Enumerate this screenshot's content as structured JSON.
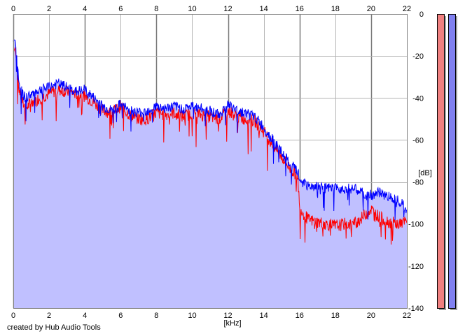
{
  "credit": "created by Hub Audio Tools",
  "chart_data": {
    "type": "line",
    "xlabel": "[kHz]",
    "ylabel": "[dB]",
    "xlim": [
      0,
      22
    ],
    "ylim": [
      -140,
      0
    ],
    "x_ticks": [
      0,
      2,
      4,
      6,
      8,
      10,
      12,
      14,
      16,
      18,
      20,
      22
    ],
    "y_ticks": [
      0,
      -20,
      -40,
      -60,
      -80,
      -100,
      -120,
      -140
    ],
    "grid": true,
    "fill_color": "#c0c0ff",
    "series": [
      {
        "color": "#ff0000",
        "x": [
          0,
          0.1,
          0.2,
          0.3,
          0.5,
          0.7,
          1.0,
          1.5,
          2.0,
          2.5,
          3.0,
          3.5,
          4.0,
          4.5,
          5.0,
          5.5,
          6.0,
          6.5,
          7.0,
          7.5,
          8.0,
          8.5,
          9.0,
          9.5,
          10.0,
          10.5,
          11.0,
          11.5,
          12.0,
          12.5,
          13.0,
          13.5,
          14.0,
          14.5,
          15.0,
          15.5,
          15.9,
          16.0,
          16.3,
          16.5,
          17.0,
          17.5,
          18.0,
          18.5,
          19.0,
          19.5,
          19.7,
          20.0,
          20.5,
          21.0,
          21.5,
          22.0
        ],
        "y": [
          -18,
          -16,
          -25,
          -35,
          -42,
          -45,
          -42,
          -40,
          -38,
          -36,
          -37,
          -38,
          -39,
          -42,
          -46,
          -47,
          -44,
          -48,
          -50,
          -50,
          -47,
          -48,
          -47,
          -49,
          -47,
          -48,
          -49,
          -50,
          -46,
          -49,
          -50,
          -51,
          -56,
          -62,
          -68,
          -74,
          -77,
          -92,
          -96,
          -98,
          -99,
          -100,
          -101,
          -100,
          -100,
          -97,
          -95,
          -93,
          -97,
          -99,
          -100,
          -99
        ]
      },
      {
        "color": "#0000ff",
        "x": [
          0,
          0.1,
          0.2,
          0.3,
          0.5,
          0.7,
          1.0,
          1.5,
          2.0,
          2.5,
          3.0,
          3.5,
          4.0,
          4.5,
          5.0,
          5.5,
          6.0,
          6.5,
          7.0,
          7.5,
          8.0,
          8.5,
          9.0,
          9.5,
          10.0,
          10.5,
          11.0,
          11.5,
          12.0,
          12.5,
          13.0,
          13.5,
          14.0,
          14.5,
          15.0,
          15.5,
          15.9,
          16.0,
          16.3,
          16.5,
          17.0,
          17.5,
          18.0,
          18.5,
          19.0,
          19.5,
          19.7,
          20.0,
          20.5,
          21.0,
          21.5,
          22.0
        ],
        "y": [
          -13,
          -12,
          -20,
          -32,
          -38,
          -40,
          -38,
          -36,
          -35,
          -33,
          -35,
          -37,
          -36,
          -40,
          -44,
          -46,
          -43,
          -46,
          -47,
          -46,
          -44,
          -45,
          -44,
          -45,
          -44,
          -45,
          -46,
          -48,
          -43,
          -46,
          -47,
          -49,
          -54,
          -60,
          -66,
          -72,
          -75,
          -79,
          -81,
          -82,
          -82,
          -83,
          -83,
          -83,
          -83,
          -85,
          -87,
          -86,
          -85,
          -87,
          -88,
          -93
        ]
      }
    ],
    "level_meters": [
      {
        "color": "#f08080",
        "level": 1.0
      },
      {
        "color": "#8080f0",
        "level": 1.0
      }
    ]
  }
}
